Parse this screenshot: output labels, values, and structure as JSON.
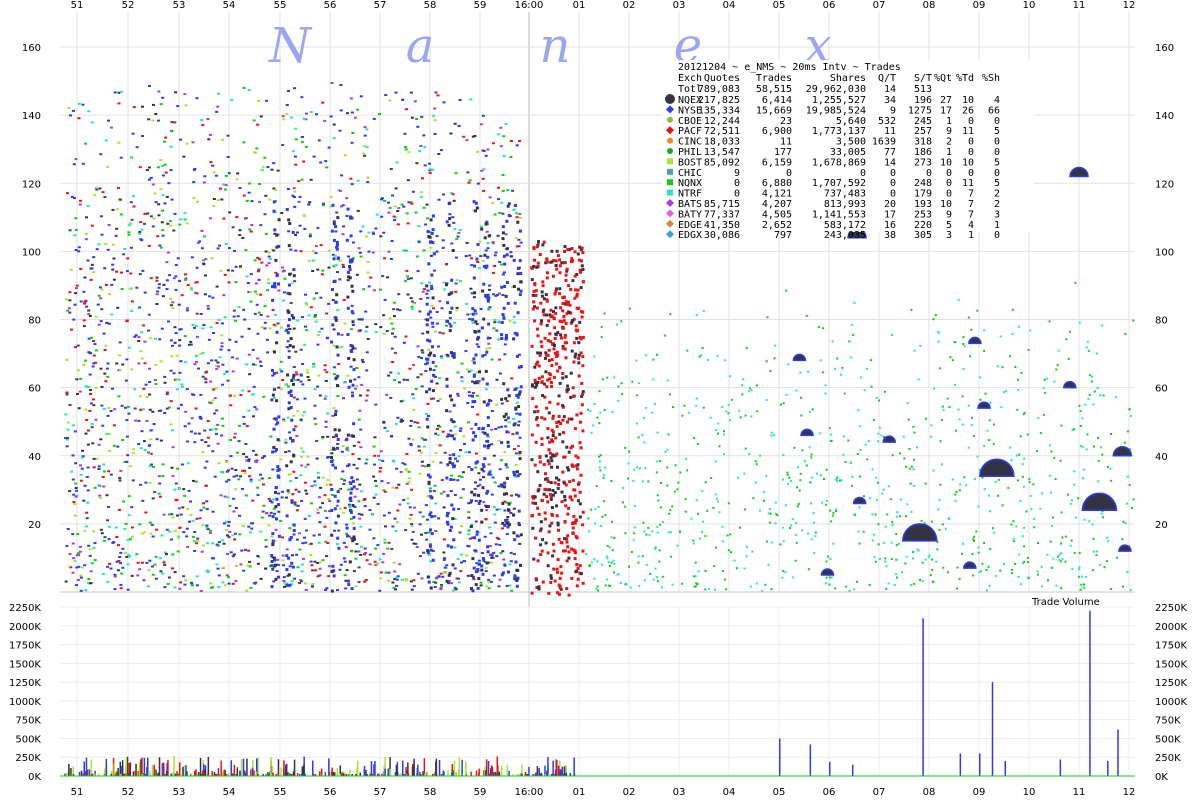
{
  "brand_letters": [
    "N",
    "a",
    "n",
    "e",
    "x"
  ],
  "chart_data": {
    "type": "scatter",
    "title_line": "20121204 ~ e_NMS ~ 20ms Intv ~ Trades",
    "x_ticks": [
      "51",
      "52",
      "53",
      "54",
      "55",
      "56",
      "57",
      "58",
      "59",
      "16:00",
      "01",
      "02",
      "03",
      "04",
      "05",
      "06",
      "07",
      "08",
      "09",
      "10",
      "11",
      "12"
    ],
    "price_axis": {
      "ticks": [
        "20",
        "40",
        "60",
        "80",
        "100",
        "120",
        "140",
        "160"
      ],
      "ylim": [
        0,
        165
      ]
    },
    "volume_axis": {
      "label": "Trade Volume",
      "ticks": [
        "0K",
        "250K",
        "500K",
        "750K",
        "1000K",
        "1250K",
        "1500K",
        "1750K",
        "2000K",
        "2250K"
      ],
      "ylim": [
        0,
        2250000
      ]
    },
    "grid": true,
    "legend_header": [
      "Exch",
      "Quotes",
      "Trades",
      "Shares",
      "Q/T",
      "S/T",
      "%Qt",
      "%Td",
      "%Sh"
    ],
    "legend_total": [
      "Totl",
      "789,083",
      "58,515",
      "29,962,030",
      "14",
      "513",
      "",
      "",
      ""
    ],
    "legend_rows": [
      {
        "cells": [
          "NQEX",
          "217,825",
          "6,414",
          "1,255,527",
          "34",
          "196",
          "27",
          "10",
          "4"
        ],
        "color": "#333344",
        "marker": "circle-large"
      },
      {
        "cells": [
          "NYSE",
          "135,334",
          "15,669",
          "19,985,524",
          "9",
          "1275",
          "17",
          "26",
          "66"
        ],
        "color": "#2b3cf0",
        "marker": "diamond"
      },
      {
        "cells": [
          "CBOE",
          "12,244",
          "23",
          "5,640",
          "532",
          "245",
          "1",
          "0",
          "0"
        ],
        "color": "#8fbc3a",
        "marker": "circle"
      },
      {
        "cells": [
          "PACF",
          "72,511",
          "6,900",
          "1,773,137",
          "11",
          "257",
          "9",
          "11",
          "5"
        ],
        "color": "#ee1111",
        "marker": "diamond"
      },
      {
        "cells": [
          "CINC",
          "18,033",
          "11",
          "3,500",
          "1639",
          "318",
          "2",
          "0",
          "0"
        ],
        "color": "#f08a24",
        "marker": "circle"
      },
      {
        "cells": [
          "PHIL",
          "13,547",
          "177",
          "33,005",
          "77",
          "186",
          "1",
          "0",
          "0"
        ],
        "color": "#23a323",
        "marker": "circle"
      },
      {
        "cells": [
          "BOST",
          "85,092",
          "6,159",
          "1,678,869",
          "14",
          "273",
          "10",
          "10",
          "5"
        ],
        "color": "#a8e62e",
        "marker": "square"
      },
      {
        "cells": [
          "CHIC",
          "9",
          "0",
          "0",
          "0",
          "0",
          "0",
          "0",
          "0"
        ],
        "color": "#4aa3a3",
        "marker": "square"
      },
      {
        "cells": [
          "NQNX",
          "0",
          "6,880",
          "1,707,592",
          "0",
          "248",
          "0",
          "11",
          "5"
        ],
        "color": "#11cc11",
        "marker": "square"
      },
      {
        "cells": [
          "NTRF",
          "0",
          "4,121",
          "737,483",
          "0",
          "179",
          "0",
          "7",
          "2"
        ],
        "color": "#22e8b8",
        "marker": "square"
      },
      {
        "cells": [
          "BATS",
          "85,715",
          "4,207",
          "813,993",
          "20",
          "193",
          "10",
          "7",
          "2"
        ],
        "color": "#b03ad8",
        "marker": "diamond"
      },
      {
        "cells": [
          "BATY",
          "77,337",
          "4,505",
          "1,141,553",
          "17",
          "253",
          "9",
          "7",
          "3"
        ],
        "color": "#e060e0",
        "marker": "diamond"
      },
      {
        "cells": [
          "EDGE",
          "41,350",
          "2,652",
          "583,172",
          "16",
          "220",
          "5",
          "4",
          "1"
        ],
        "color": "#c89040",
        "marker": "diamond"
      },
      {
        "cells": [
          "EDGX",
          "30,086",
          "797",
          "243,035",
          "38",
          "305",
          "3",
          "1",
          "0"
        ],
        "color": "#3aa0e0",
        "marker": "diamond"
      }
    ],
    "volume_spikes": [
      {
        "tick_index": 14,
        "offset": 0.0,
        "value": 500000
      },
      {
        "tick_index": 14,
        "offset": 0.6,
        "value": 420000
      },
      {
        "tick_index": 15,
        "offset": 0.0,
        "value": 190000
      },
      {
        "tick_index": 15,
        "offset": 0.45,
        "value": 150000
      },
      {
        "tick_index": 16,
        "offset": 0.85,
        "value": 2100000
      },
      {
        "tick_index": 17,
        "offset": 0.6,
        "value": 300000
      },
      {
        "tick_index": 18,
        "offset": 0.25,
        "value": 1250000
      },
      {
        "tick_index": 18,
        "offset": 0.0,
        "value": 300000
      },
      {
        "tick_index": 18,
        "offset": 0.5,
        "value": 200000
      },
      {
        "tick_index": 19,
        "offset": 0.6,
        "value": 220000
      },
      {
        "tick_index": 20,
        "offset": 0.2,
        "value": 2200000
      },
      {
        "tick_index": 20,
        "offset": 0.75,
        "value": 620000
      },
      {
        "tick_index": 20,
        "offset": 0.55,
        "value": 200000
      }
    ],
    "trade_bubbles": [
      {
        "tick_index": 16,
        "offset": 0.8,
        "price": 15,
        "size": "large"
      },
      {
        "tick_index": 18,
        "offset": 0.35,
        "price": 34,
        "size": "large"
      },
      {
        "tick_index": 20,
        "offset": 0.4,
        "price": 24,
        "size": "large"
      },
      {
        "tick_index": 15,
        "offset": 0.55,
        "price": 104,
        "size": "medium"
      },
      {
        "tick_index": 20,
        "offset": 0.0,
        "price": 122,
        "size": "medium"
      },
      {
        "tick_index": 20,
        "offset": 0.85,
        "price": 40,
        "size": "medium"
      },
      {
        "tick_index": 14,
        "offset": 0.55,
        "price": 46,
        "size": "small"
      },
      {
        "tick_index": 15,
        "offset": 0.6,
        "price": 26,
        "size": "small"
      },
      {
        "tick_index": 16,
        "offset": 0.2,
        "price": 44,
        "size": "small"
      },
      {
        "tick_index": 17,
        "offset": 0.9,
        "price": 73,
        "size": "small"
      },
      {
        "tick_index": 18,
        "offset": 0.1,
        "price": 54,
        "size": "small"
      },
      {
        "tick_index": 17,
        "offset": 0.8,
        "price": 7,
        "size": "small"
      },
      {
        "tick_index": 14,
        "offset": 0.4,
        "price": 68,
        "size": "small"
      },
      {
        "tick_index": 19,
        "offset": 0.8,
        "price": 60,
        "size": "small"
      },
      {
        "tick_index": 14,
        "offset": 0.95,
        "price": 5,
        "size": "small"
      },
      {
        "tick_index": 20,
        "offset": 0.9,
        "price": 12,
        "size": "small"
      }
    ]
  }
}
